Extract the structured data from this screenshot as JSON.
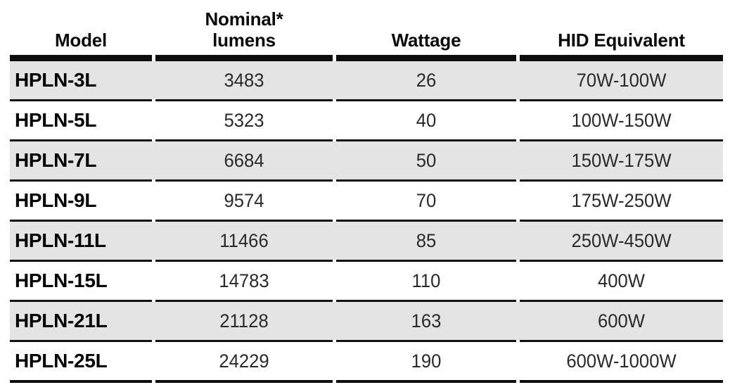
{
  "table": {
    "columns": [
      {
        "label": "Model"
      },
      {
        "label": "Nominal*",
        "label2": "lumens"
      },
      {
        "label": "Wattage"
      },
      {
        "label": "HID Equivalent"
      }
    ],
    "rows": [
      {
        "model": "HPLN-3L",
        "lumens": "3483",
        "wattage": "26",
        "hid": "70W-100W"
      },
      {
        "model": "HPLN-5L",
        "lumens": "5323",
        "wattage": "40",
        "hid": "100W-150W"
      },
      {
        "model": "HPLN-7L",
        "lumens": "6684",
        "wattage": "50",
        "hid": "150W-175W"
      },
      {
        "model": "HPLN-9L",
        "lumens": "9574",
        "wattage": "70",
        "hid": "175W-250W"
      },
      {
        "model": "HPLN-11L",
        "lumens": "11466",
        "wattage": "85",
        "hid": "250W-450W"
      },
      {
        "model": "HPLN-15L",
        "lumens": "14783",
        "wattage": "110",
        "hid": "400W"
      },
      {
        "model": "HPLN-21L",
        "lumens": "21128",
        "wattage": "163",
        "hid": "600W"
      },
      {
        "model": "HPLN-25L",
        "lumens": "24229",
        "wattage": "190",
        "hid": "600W-1000W"
      }
    ],
    "colors": {
      "stripe_bg": "#e4e4e4",
      "rule": "#0d0d0d",
      "header_text": "#0a0a0a",
      "body_text": "#2a2a2a"
    }
  }
}
